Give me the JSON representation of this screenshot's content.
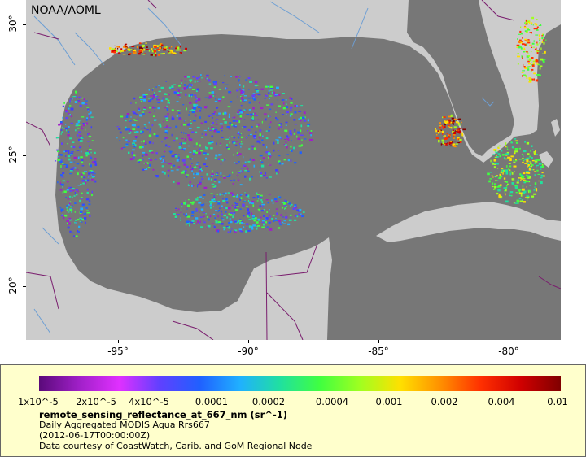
{
  "credit": "NOAA/AOML",
  "axes": {
    "x_ticks": [
      "-95°",
      "-90°",
      "-85°",
      "-80°"
    ],
    "y_ticks": [
      "30°",
      "25°",
      "20°"
    ]
  },
  "colors": {
    "ocean_nodata": "#777777",
    "land": "#cccccc",
    "legend_bg": "#ffffcc"
  },
  "legend": {
    "tick_labels": [
      "1x10^-5",
      "2x10^-5",
      "4x10^-5",
      "0.0001",
      "0.0002",
      "0.0004",
      "0.001",
      "0.002",
      "0.004",
      "0.01"
    ],
    "colormap": [
      "#5a0a7a",
      "#a020c8",
      "#e030ff",
      "#6040ff",
      "#2060ff",
      "#20b0ff",
      "#20e0a0",
      "#40ff40",
      "#a0ff20",
      "#ffe000",
      "#ff9000",
      "#ff3000",
      "#d00000",
      "#800000"
    ],
    "variable": "remote_sensing_reflectance_at_667_nm (sr^-1)",
    "line1": "Daily Aggregated MODIS Aqua Rrs667",
    "line2": "(2012-06-17T00:00:00Z)",
    "line3": "Data courtesy of CoastWatch, Carib. and GoM Regional Node"
  }
}
